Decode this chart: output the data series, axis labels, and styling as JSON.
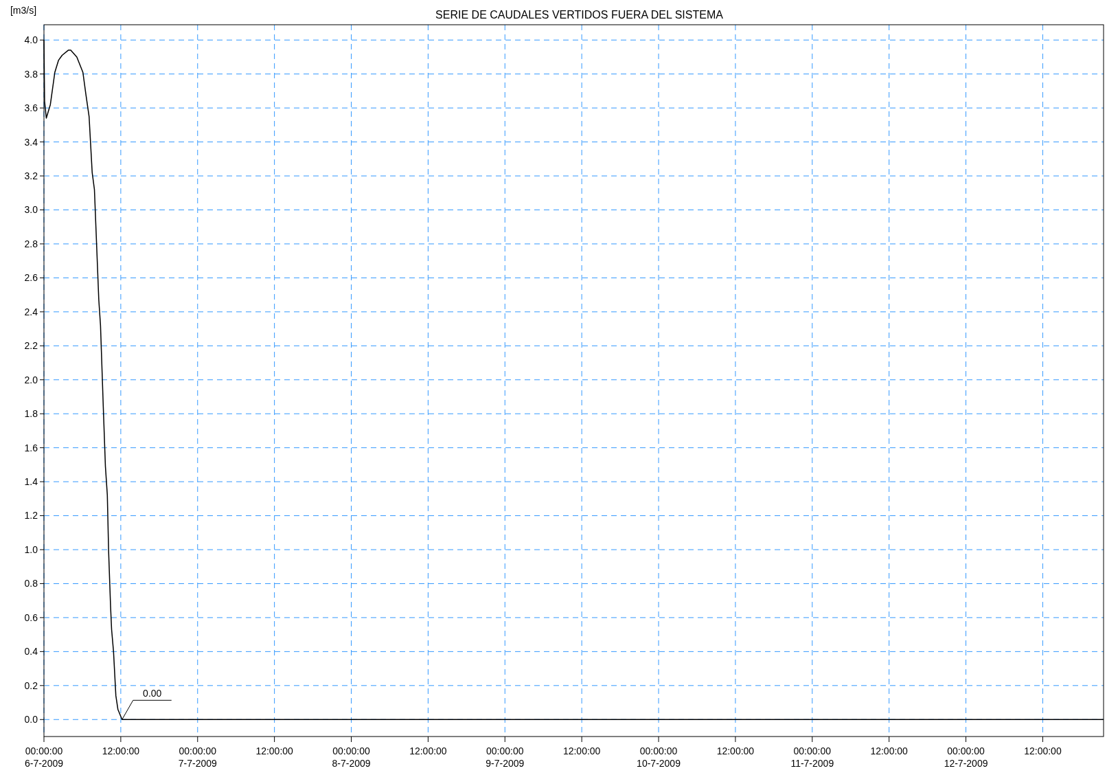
{
  "chart_data": {
    "type": "line",
    "title": "SERIE DE CAUDALES VERTIDOS FUERA DEL SISTEMA",
    "ylabel": "[m3/s]",
    "series": [
      {
        "color": "#000000",
        "x": [
          "2009-07-06T00:00",
          "2009-07-06T00:06",
          "2009-07-06T00:22",
          "2009-07-06T01:00",
          "2009-07-06T01:42",
          "2009-07-06T02:16",
          "2009-07-06T02:50",
          "2009-07-06T03:48",
          "2009-07-06T04:11",
          "2009-07-06T05:08",
          "2009-07-06T06:05",
          "2009-07-06T06:33",
          "2009-07-06T07:03",
          "2009-07-06T07:32",
          "2009-07-06T07:53",
          "2009-07-06T08:34",
          "2009-07-06T08:50",
          "2009-07-06T09:08",
          "2009-07-06T09:16",
          "2009-07-06T09:36",
          "2009-07-06T09:54",
          "2009-07-06T10:06",
          "2009-07-06T10:24",
          "2009-07-06T10:34",
          "2009-07-06T10:52",
          "2009-07-06T11:14",
          "2009-07-06T11:33",
          "2009-07-06T12:12",
          "2009-07-12T21:30"
        ],
        "values": [
          4.0,
          3.64,
          3.54,
          3.62,
          3.81,
          3.88,
          3.91,
          3.94,
          3.94,
          3.9,
          3.81,
          3.68,
          3.55,
          3.22,
          3.12,
          2.47,
          2.32,
          1.99,
          1.84,
          1.49,
          1.32,
          0.99,
          0.67,
          0.53,
          0.4,
          0.14,
          0.06,
          0.0,
          0.0
        ]
      }
    ],
    "annotations": [
      {
        "text": "0.00",
        "x": "2009-07-06T12:12",
        "y": 0.0
      }
    ],
    "xlim": [
      "2009-07-06T00:00",
      "2009-07-12T21:30"
    ],
    "xticks": [
      {
        "value": "2009-07-06T00:00",
        "label": "00:00:00\n6-7-2009"
      },
      {
        "value": "2009-07-06T12:00",
        "label": "12:00:00"
      },
      {
        "value": "2009-07-07T00:00",
        "label": "00:00:00\n7-7-2009"
      },
      {
        "value": "2009-07-07T12:00",
        "label": "12:00:00"
      },
      {
        "value": "2009-07-08T00:00",
        "label": "00:00:00\n8-7-2009"
      },
      {
        "value": "2009-07-08T12:00",
        "label": "12:00:00"
      },
      {
        "value": "2009-07-09T00:00",
        "label": "00:00:00\n9-7-2009"
      },
      {
        "value": "2009-07-09T12:00",
        "label": "12:00:00"
      },
      {
        "value": "2009-07-10T00:00",
        "label": "00:00:00\n10-7-2009"
      },
      {
        "value": "2009-07-10T12:00",
        "label": "12:00:00"
      },
      {
        "value": "2009-07-11T00:00",
        "label": "00:00:00\n11-7-2009"
      },
      {
        "value": "2009-07-11T12:00",
        "label": "12:00:00"
      },
      {
        "value": "2009-07-12T00:00",
        "label": "00:00:00\n12-7-2009"
      },
      {
        "value": "2009-07-12T12:00",
        "label": "12:00:00"
      }
    ],
    "ylim": [
      -0.1,
      4.09
    ],
    "yticks": [
      {
        "value": 0,
        "label": "0.0"
      },
      {
        "value": 0.2,
        "label": "0.2"
      },
      {
        "value": 0.4,
        "label": "0.4"
      },
      {
        "value": 0.6,
        "label": "0.6"
      },
      {
        "value": 0.8,
        "label": "0.8"
      },
      {
        "value": 1.0,
        "label": "1.0"
      },
      {
        "value": 1.2,
        "label": "1.2"
      },
      {
        "value": 1.4,
        "label": "1.4"
      },
      {
        "value": 1.6,
        "label": "1.6"
      },
      {
        "value": 1.8,
        "label": "1.8"
      },
      {
        "value": 2.0,
        "label": "2.0"
      },
      {
        "value": 2.2,
        "label": "2.2"
      },
      {
        "value": 2.4,
        "label": "2.4"
      },
      {
        "value": 2.6,
        "label": "2.6"
      },
      {
        "value": 2.8,
        "label": "2.8"
      },
      {
        "value": 3.0,
        "label": "3.0"
      },
      {
        "value": 3.2,
        "label": "3.2"
      },
      {
        "value": 3.4,
        "label": "3.4"
      },
      {
        "value": 3.6,
        "label": "3.6"
      },
      {
        "value": 3.8,
        "label": "3.8"
      },
      {
        "value": 4.0,
        "label": "4.0"
      }
    ],
    "grid": true,
    "line_style": "solid",
    "marker": "none"
  }
}
